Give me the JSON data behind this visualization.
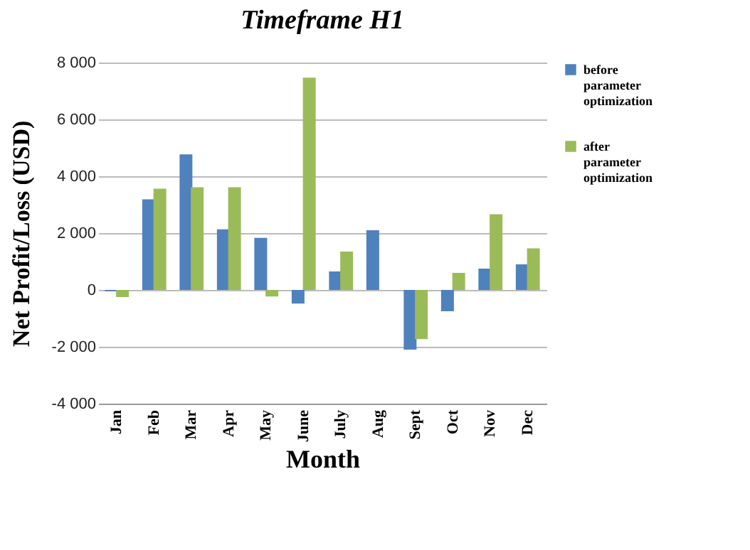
{
  "chart_data": {
    "type": "bar",
    "title": "Timeframe H1",
    "xlabel": "Month",
    "ylabel": "Net Profit/Loss (USD)",
    "categories": [
      "Jan",
      "Feb",
      "Mar",
      "Apr",
      "May",
      "June",
      "July",
      "Aug",
      "Sept",
      "Oct",
      "Nov",
      "Dec"
    ],
    "series": [
      {
        "name": "before parameter optimization",
        "color": "#4f81bd",
        "values": [
          -50,
          3190,
          4770,
          2130,
          1830,
          -480,
          650,
          2100,
          -2100,
          -750,
          750,
          900
        ]
      },
      {
        "name": "after parameter optimization",
        "color": "#9bbb59",
        "values": [
          -250,
          3560,
          3610,
          3610,
          -230,
          7470,
          1350,
          0,
          -1730,
          600,
          2660,
          1460
        ]
      }
    ],
    "ylim": [
      -4000,
      8000
    ],
    "yticks": [
      {
        "value": -4000,
        "label": "-4 000"
      },
      {
        "value": -2000,
        "label": "-2 000"
      },
      0,
      {
        "value": 2000,
        "label": "2 000"
      },
      {
        "value": 4000,
        "label": "4 000"
      },
      {
        "value": 6000,
        "label": "6 000"
      },
      {
        "value": 8000,
        "label": "8 000"
      }
    ],
    "grid": "y",
    "legend": "right"
  }
}
